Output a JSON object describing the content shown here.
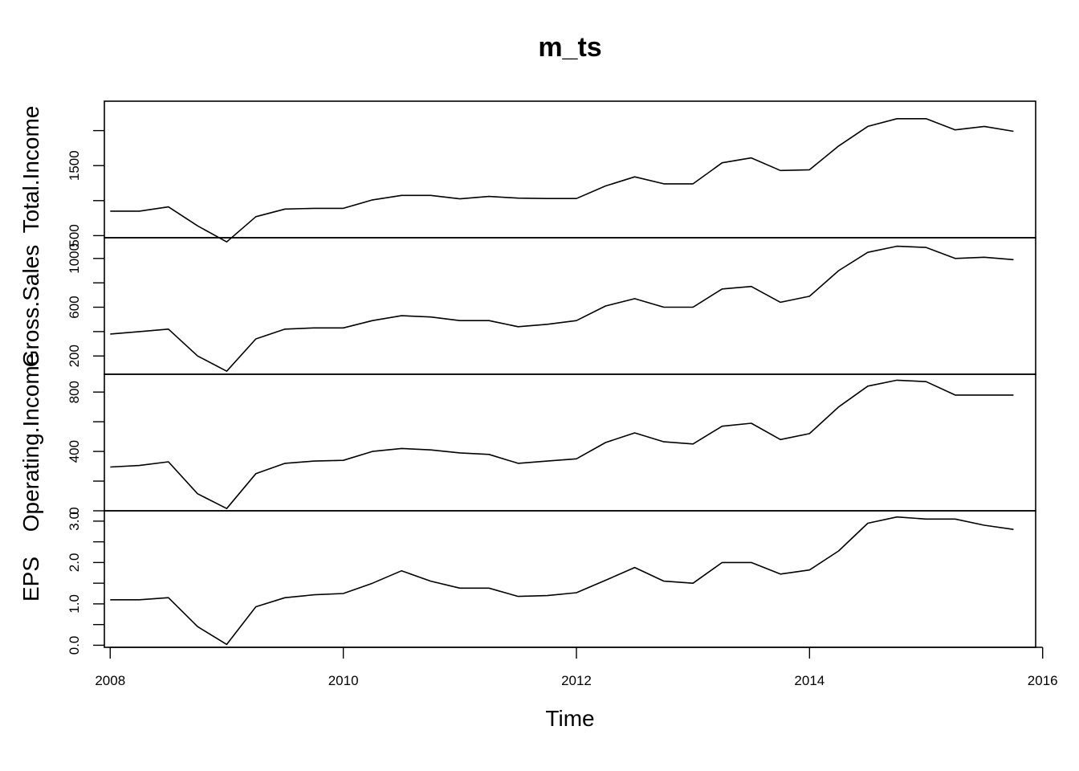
{
  "chart_data": {
    "type": "line",
    "title": "m_ts",
    "xlabel": "Time",
    "x_ticks": [
      "2008",
      "2010",
      "2012",
      "2014",
      "2016"
    ],
    "x_values": [
      2008.0,
      2008.25,
      2008.5,
      2008.75,
      2009.0,
      2009.25,
      2009.5,
      2009.75,
      2010.0,
      2010.25,
      2010.5,
      2010.75,
      2011.0,
      2011.25,
      2011.5,
      2011.75,
      2012.0,
      2012.25,
      2012.5,
      2012.75,
      2013.0,
      2013.25,
      2013.5,
      2013.75,
      2014.0,
      2014.25,
      2014.5,
      2014.75,
      2015.0,
      2015.25,
      2015.5,
      2015.75
    ],
    "xlim": [
      2007.95,
      2015.94
    ],
    "grid": false,
    "panels": [
      {
        "name": "Total.Income",
        "ylim": [
          470,
          2420
        ],
        "y_ticks": [
          500,
          1000,
          1500,
          2000
        ],
        "y_tick_labels": [
          "500",
          "",
          "1500",
          ""
        ],
        "values": [
          850,
          850,
          910,
          640,
          410,
          770,
          880,
          890,
          890,
          1010,
          1075,
          1075,
          1025,
          1060,
          1035,
          1030,
          1030,
          1210,
          1340,
          1240,
          1240,
          1540,
          1610,
          1430,
          1440,
          1780,
          2060,
          2170,
          2170,
          2010,
          2060,
          1990
        ]
      },
      {
        "name": "Gross.Sales",
        "ylim": [
          50,
          1170
        ],
        "y_ticks": [
          200,
          400,
          600,
          800,
          1000
        ],
        "y_tick_labels": [
          "200",
          "",
          "600",
          "",
          "1000"
        ],
        "values": [
          380,
          400,
          420,
          200,
          75,
          340,
          420,
          430,
          430,
          490,
          530,
          520,
          490,
          490,
          440,
          460,
          490,
          610,
          670,
          600,
          600,
          750,
          770,
          640,
          690,
          900,
          1050,
          1100,
          1090,
          1000,
          1010,
          990
        ]
      },
      {
        "name": "Operating.Income",
        "ylim": [
          0,
          920
        ],
        "y_ticks": [
          0,
          200,
          400,
          600,
          800
        ],
        "y_tick_labels": [
          "0",
          "",
          "400",
          "",
          "800"
        ],
        "values": [
          295,
          305,
          330,
          115,
          15,
          250,
          320,
          335,
          340,
          400,
          420,
          410,
          390,
          380,
          320,
          335,
          350,
          460,
          525,
          465,
          450,
          570,
          590,
          480,
          520,
          700,
          840,
          880,
          870,
          780,
          780,
          780
        ]
      },
      {
        "name": "EPS",
        "ylim": [
          -0.05,
          3.25
        ],
        "y_ticks": [
          0.0,
          0.5,
          1.0,
          1.5,
          2.0,
          2.5,
          3.0
        ],
        "y_tick_labels": [
          "0.0",
          "",
          "1.0",
          "",
          "2.0",
          "",
          "3.0"
        ],
        "values": [
          1.1,
          1.1,
          1.15,
          0.45,
          0.02,
          0.93,
          1.15,
          1.22,
          1.25,
          1.5,
          1.8,
          1.55,
          1.38,
          1.38,
          1.18,
          1.2,
          1.27,
          1.57,
          1.88,
          1.55,
          1.5,
          2.0,
          2.0,
          1.72,
          1.82,
          2.28,
          2.95,
          3.1,
          3.05,
          3.05,
          2.9,
          2.8
        ]
      }
    ]
  }
}
